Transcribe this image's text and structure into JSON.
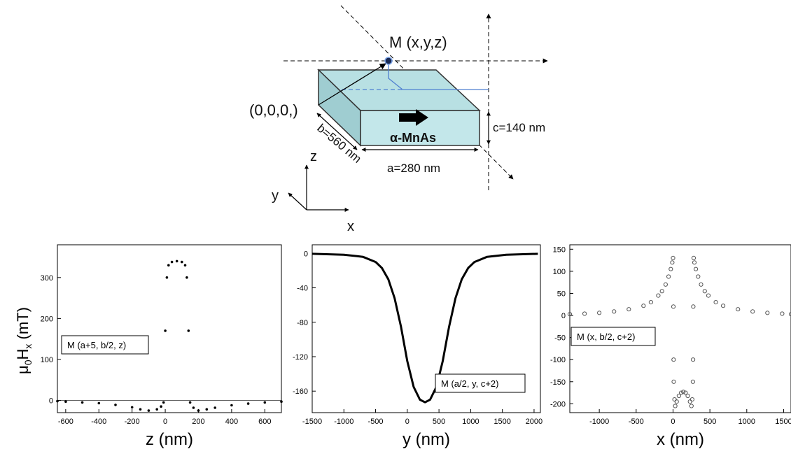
{
  "schematic": {
    "point_label": "M (x,y,z)",
    "origin_label": "(0,0,0,)",
    "material_label": "α-MnAs",
    "dim_a": "a=280 nm",
    "dim_b": "b=560 nm",
    "dim_c": "c=140 nm",
    "axis_x": "x",
    "axis_y": "y",
    "axis_z": "z",
    "colors": {
      "block_top": "#b8e0e3",
      "block_side": "#9fcdd1",
      "block_front": "#c3e7ea",
      "guide_lines": "#4f7fd0"
    }
  },
  "shared_ylabel_main": "μ",
  "shared_ylabel_sub0": "0",
  "shared_ylabel_mid": "H",
  "shared_ylabel_subx": "x",
  "shared_ylabel_unit": " (mT)",
  "chart_data": [
    {
      "type": "scatter",
      "xlabel": "z (nm)",
      "annotation": "M (a+5, b/2, z)",
      "xlim": [
        -650,
        700
      ],
      "ylim": [
        -30,
        380
      ],
      "xticks": [
        -600,
        -400,
        -200,
        0,
        200,
        400,
        600
      ],
      "yticks": [
        0,
        100,
        200,
        300
      ],
      "zero_line": true,
      "series": [
        {
          "values": [
            [
              -650,
              -2
            ],
            [
              -600,
              -3
            ],
            [
              -500,
              -5
            ],
            [
              -400,
              -7
            ],
            [
              -300,
              -11
            ],
            [
              -200,
              -17
            ],
            [
              -150,
              -22
            ],
            [
              -100,
              -25
            ],
            [
              -50,
              -22
            ],
            [
              -25,
              -15
            ],
            [
              -10,
              -5
            ],
            [
              0,
              170
            ],
            [
              10,
              300
            ],
            [
              20,
              330
            ],
            [
              40,
              338
            ],
            [
              70,
              340
            ],
            [
              100,
              338
            ],
            [
              120,
              330
            ],
            [
              130,
              300
            ],
            [
              140,
              170
            ],
            [
              150,
              -5
            ],
            [
              170,
              -18
            ],
            [
              200,
              -25
            ],
            [
              250,
              -22
            ],
            [
              300,
              -18
            ],
            [
              400,
              -12
            ],
            [
              500,
              -8
            ],
            [
              600,
              -5
            ],
            [
              700,
              -3
            ]
          ]
        }
      ]
    },
    {
      "type": "line",
      "xlabel": "y (nm)",
      "annotation": "M (a/2, y, c+2)",
      "xlim": [
        -1500,
        2100
      ],
      "ylim": [
        -185,
        10
      ],
      "xticks": [
        -1500,
        -1000,
        -500,
        0,
        500,
        1000,
        1500,
        2000
      ],
      "yticks": [
        0,
        -40,
        -80,
        -120,
        -160
      ],
      "series": [
        {
          "values": [
            [
              -1500,
              -0.5
            ],
            [
              -1000,
              -1.5
            ],
            [
              -700,
              -4
            ],
            [
              -500,
              -10
            ],
            [
              -400,
              -17
            ],
            [
              -300,
              -30
            ],
            [
              -200,
              -52
            ],
            [
              -100,
              -85
            ],
            [
              0,
              -125
            ],
            [
              100,
              -155
            ],
            [
              200,
              -170
            ],
            [
              280,
              -173
            ],
            [
              360,
              -170
            ],
            [
              460,
              -155
            ],
            [
              560,
              -125
            ],
            [
              660,
              -85
            ],
            [
              760,
              -52
            ],
            [
              860,
              -30
            ],
            [
              960,
              -17
            ],
            [
              1060,
              -10
            ],
            [
              1260,
              -4
            ],
            [
              1560,
              -1.5
            ],
            [
              2060,
              -0.5
            ]
          ]
        }
      ]
    },
    {
      "type": "scatter",
      "xlabel": "x (nm)",
      "annotation": "M (x, b/2, c+2)",
      "xlim": [
        -1400,
        1600
      ],
      "ylim": [
        -220,
        160
      ],
      "xticks": [
        -1000,
        -500,
        0,
        500,
        1000,
        1500
      ],
      "yticks": [
        150,
        100,
        50,
        0,
        -50,
        -100,
        -150,
        -200
      ],
      "series": [
        {
          "values": [
            [
              -1400,
              3
            ],
            [
              -1200,
              4
            ],
            [
              -1000,
              6
            ],
            [
              -800,
              9
            ],
            [
              -600,
              14
            ],
            [
              -400,
              22
            ],
            [
              -300,
              30
            ],
            [
              -200,
              45
            ],
            [
              -150,
              55
            ],
            [
              -100,
              70
            ],
            [
              -60,
              88
            ],
            [
              -30,
              105
            ],
            [
              -10,
              120
            ],
            [
              0,
              130
            ],
            [
              5,
              20
            ],
            [
              8,
              -100
            ],
            [
              10,
              -150
            ],
            [
              20,
              -190
            ],
            [
              30,
              -205
            ],
            [
              50,
              -195
            ],
            [
              80,
              -182
            ],
            [
              110,
              -175
            ],
            [
              140,
              -173
            ],
            [
              170,
              -175
            ],
            [
              200,
              -182
            ],
            [
              230,
              -195
            ],
            [
              250,
              -205
            ],
            [
              260,
              -190
            ],
            [
              270,
              -150
            ],
            [
              272,
              -100
            ],
            [
              275,
              20
            ],
            [
              280,
              130
            ],
            [
              290,
              120
            ],
            [
              310,
              105
            ],
            [
              340,
              88
            ],
            [
              380,
              70
            ],
            [
              430,
              55
            ],
            [
              480,
              45
            ],
            [
              580,
              30
            ],
            [
              680,
              22
            ],
            [
              880,
              14
            ],
            [
              1080,
              9
            ],
            [
              1280,
              6
            ],
            [
              1480,
              4
            ],
            [
              1600,
              3
            ]
          ]
        }
      ]
    }
  ]
}
